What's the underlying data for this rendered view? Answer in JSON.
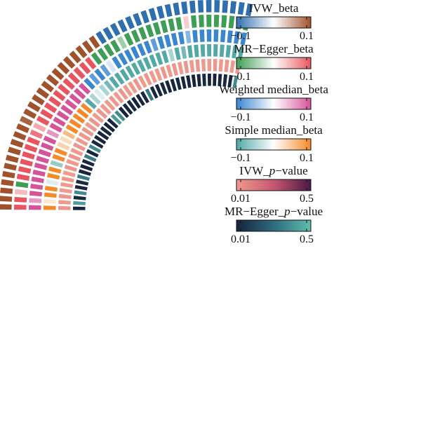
{
  "chart_data": {
    "type": "heatmap",
    "layout": "circular",
    "title": "",
    "legends": [
      {
        "title": "IVW_beta",
        "min_label": "−0.1",
        "max_label": "0.1",
        "colors": [
          "#2f6fb0",
          "#ffffff",
          "#a0522d"
        ]
      },
      {
        "title": "MR−Egger_beta",
        "min_label": "−0.1",
        "max_label": "0.1",
        "colors": [
          "#3e9e55",
          "#ffffff",
          "#e8555f"
        ]
      },
      {
        "title": "Weighted median_beta",
        "min_label": "−0.1",
        "max_label": "0.1",
        "colors": [
          "#3a86cf",
          "#ffffff",
          "#d6539a"
        ]
      },
      {
        "title": "Simple median_beta",
        "min_label": "−0.1",
        "max_label": "0.1",
        "colors": [
          "#52a9a6",
          "#ffffff",
          "#f48a2a"
        ]
      },
      {
        "title": "IVW_",
        "title_italic": "p",
        "title_suffix": "−value",
        "min_label": "0.01",
        "max_label": "0.5",
        "colors": [
          "#ef9a8d",
          "#c8566f",
          "#4a1948"
        ]
      },
      {
        "title": "MR−Egger_",
        "title_italic": "p",
        "title_suffix": "−value",
        "min_label": "0.01",
        "max_label": "0.5",
        "colors": [
          "#16233d",
          "#2f6a7e",
          "#5fbfae"
        ]
      }
    ],
    "tracks": [
      "IVW_beta",
      "MR−Egger_beta",
      "Weighted median_beta",
      "Simple median_beta",
      "IVW_p−value",
      "MR−Egger_p−value"
    ],
    "values": [
      [
        0.1,
        0.1,
        0.1,
        0.1,
        0.1,
        0.1,
        0.1,
        0.1,
        0.1,
        0.1,
        0.1,
        0.09,
        0.1,
        0.1,
        0.1,
        0.1,
        0.1,
        0.1,
        0.1,
        0.1,
        0.1,
        0.1,
        0.1,
        0.1,
        0.1,
        -0.1,
        -0.1,
        -0.1,
        -0.1,
        -0.1,
        -0.1,
        -0.1,
        -0.1,
        -0.1,
        -0.1,
        -0.1,
        -0.1,
        -0.1,
        -0.1,
        -0.1,
        -0.1,
        -0.1,
        -0.1,
        -0.1,
        -0.1
      ],
      [
        0.1,
        0.1,
        0.04,
        -0.1,
        0.1,
        0.1,
        0.1,
        0.1,
        0.1,
        0.1,
        0.08,
        0.05,
        0.1,
        0.1,
        0.1,
        0.1,
        0.1,
        0.1,
        0.1,
        0.1,
        0.1,
        0.1,
        0.1,
        -0.1,
        -0.1,
        -0.1,
        -0.1,
        -0.05,
        -0.1,
        -0.1,
        -0.1,
        -0.1,
        -0.1,
        -0.1,
        -0.1,
        -0.1,
        0.03,
        -0.1,
        -0.1,
        -0.1,
        -0.1,
        -0.1,
        -0.1,
        -0.1,
        -0.1
      ],
      [
        0.1,
        0.06,
        0.1,
        0.1,
        0.1,
        0.1,
        0.1,
        0.1,
        0.1,
        0.1,
        0.1,
        0.06,
        0.1,
        0.1,
        0.1,
        0.1,
        0.1,
        0.1,
        0.1,
        0.1,
        -0.1,
        -0.08,
        -0.1,
        -0.08,
        -0.02,
        -0.1,
        -0.1,
        -0.1,
        -0.1,
        -0.1,
        -0.1,
        -0.08,
        -0.1,
        -0.1,
        -0.1,
        -0.1,
        -0.06,
        -0.1,
        -0.1,
        -0.1,
        -0.1,
        -0.1,
        -0.1,
        -0.1,
        -0.1
      ],
      [
        0.1,
        0.02,
        0.1,
        0.1,
        -0.02,
        0.1,
        0.1,
        -0.06,
        0.1,
        0.1,
        0.04,
        0.03,
        0.06,
        0.1,
        0.1,
        0.1,
        0.1,
        0.1,
        -0.1,
        -0.05,
        -0.02,
        -0.05,
        -0.08,
        -0.1,
        -0.1,
        -0.1,
        -0.1,
        -0.1,
        -0.1,
        -0.1,
        -0.1,
        -0.1,
        -0.1,
        -0.05,
        -0.1,
        -0.08,
        -0.1,
        -0.1,
        -0.1,
        -0.1,
        -0.1,
        -0.1,
        -0.1,
        -0.1,
        -0.1
      ],
      [
        0.02,
        0.01,
        0.02,
        0.01,
        0.01,
        0.02,
        0.01,
        0.02,
        0.01,
        0.02,
        0.01,
        0.02,
        0.01,
        0.01,
        0.02,
        0.01,
        0.02,
        0.01,
        0.02,
        0.01,
        0.01,
        0.02,
        0.01,
        0.02,
        0.01,
        0.01,
        0.02,
        0.01,
        0.02,
        0.01,
        0.01,
        0.02,
        0.01,
        0.02,
        0.01,
        0.02,
        0.01,
        0.02,
        0.01,
        0.01,
        0.02,
        0.01,
        0.02,
        0.01,
        0.02
      ],
      [
        0.02,
        0.4,
        0.03,
        0.35,
        0.02,
        0.03,
        0.3,
        0.02,
        0.01,
        0.03,
        0.3,
        0.02,
        0.35,
        0.03,
        0.02,
        0.02,
        0.03,
        0.01,
        0.02,
        0.4,
        0.35,
        0.01,
        0.02,
        0.03,
        0.01,
        0.02,
        0.03,
        0.3,
        0.02,
        0.02,
        0.03,
        0.01,
        0.02,
        0.03,
        0.02,
        0.02,
        0.01,
        0.02,
        0.03,
        0.02,
        0.01,
        0.02,
        0.03,
        0.02,
        0.35
      ]
    ]
  }
}
